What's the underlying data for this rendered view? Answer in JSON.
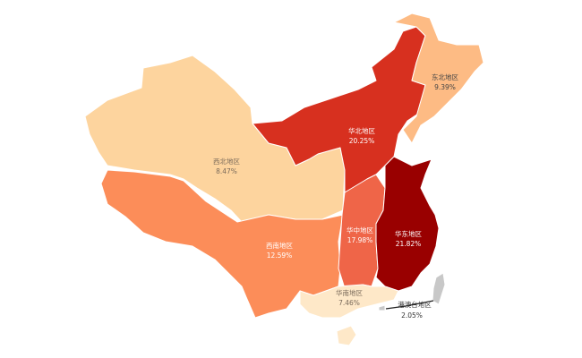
{
  "map": {
    "regions": [
      {
        "id": "northwest",
        "name": "西北地区",
        "value": "8.47%",
        "color": "#fdd49e"
      },
      {
        "id": "southwest",
        "name": "西南地区",
        "value": "12.59%",
        "color": "#fc8d59"
      },
      {
        "id": "north",
        "name": "华北地区",
        "value": "20.25%",
        "color": "#d7301f"
      },
      {
        "id": "northeast",
        "name": "东北地区",
        "value": "9.39%",
        "color": "#fdbb84"
      },
      {
        "id": "central",
        "name": "华中地区",
        "value": "17.98%",
        "color": "#ef6548"
      },
      {
        "id": "east",
        "name": "华东地区",
        "value": "21.82%",
        "color": "#990000"
      },
      {
        "id": "south",
        "name": "华南地区",
        "value": "7.46%",
        "color": "#fee8c8"
      },
      {
        "id": "hmt",
        "name": "港澳台地区",
        "value": "2.05%",
        "color": "#c8c8c8"
      }
    ]
  }
}
